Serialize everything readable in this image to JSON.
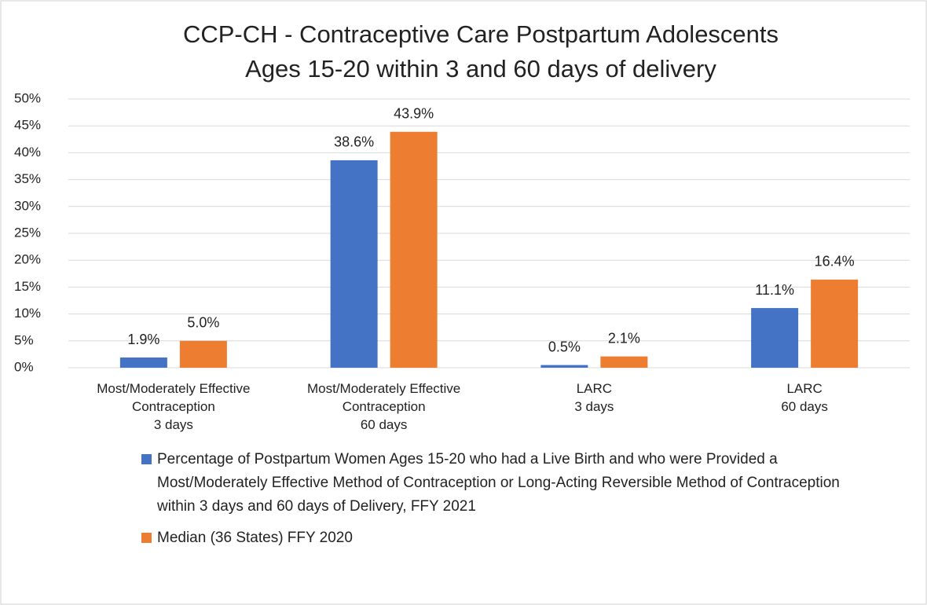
{
  "chart_data": {
    "type": "bar",
    "title": "CCP-CH - Contraceptive Care Postpartum Adolescents",
    "subtitle": "Ages 15-20 within 3 and 60 days of delivery",
    "categories": [
      "Most/Moderately Effective\nContraception\n3 days",
      "Most/Moderately Effective\nContraception\n60 days",
      "LARC\n3 days",
      "LARC\n60 days"
    ],
    "series": [
      {
        "name": "Percentage of Postpartum Women Ages 15-20 who had a Live Birth and who were Provided a Most/Moderately Effective Method of Contraception or Long-Acting Reversible Method of Contraception within 3 days and 60 days of Delivery, FFY 2021",
        "color": "#4472c4",
        "values": [
          1.9,
          38.6,
          0.5,
          11.1
        ],
        "value_labels": [
          "1.9%",
          "38.6%",
          "0.5%",
          "11.1%"
        ]
      },
      {
        "name": "Median (36 States) FFY 2020",
        "color": "#ed7d31",
        "values": [
          5.0,
          43.9,
          2.1,
          16.4
        ],
        "value_labels": [
          "5.0%",
          "43.9%",
          "2.1%",
          "16.4%"
        ]
      }
    ],
    "ylim": [
      0,
      50
    ],
    "yticks": [
      {
        "value": 0,
        "label": "0%"
      },
      {
        "value": 5,
        "label": "5%"
      },
      {
        "value": 10,
        "label": "10%"
      },
      {
        "value": 15,
        "label": "15%"
      },
      {
        "value": 20,
        "label": "20%"
      },
      {
        "value": 25,
        "label": "25%"
      },
      {
        "value": 30,
        "label": "30%"
      },
      {
        "value": 35,
        "label": "35%"
      },
      {
        "value": 40,
        "label": "40%"
      },
      {
        "value": 45,
        "label": "45%"
      },
      {
        "value": 50,
        "label": "50%"
      }
    ],
    "grid": true
  }
}
